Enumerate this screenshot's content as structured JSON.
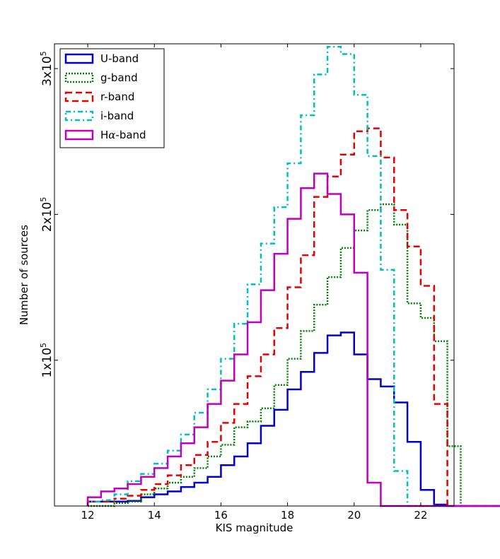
{
  "chart_data": {
    "type": "line",
    "title": "",
    "xlabel": "KIS magnitude",
    "ylabel": "Number of sources",
    "xlim": [
      11,
      23
    ],
    "ylim": [
      0,
      317000
    ],
    "bin_width": 0.4,
    "bin_edges_start": 12.0,
    "xticks": [
      12,
      14,
      16,
      18,
      20,
      22
    ],
    "xtick_labels": [
      "12",
      "14",
      "16",
      "18",
      "20",
      "22"
    ],
    "yticks": [
      {
        "value": 100000,
        "base": "1x10",
        "exp": "5"
      },
      {
        "value": 200000,
        "base": "2x10",
        "exp": "5"
      },
      {
        "value": 300000,
        "base": "3x10",
        "exp": "5"
      }
    ],
    "legend_position": "upper-left",
    "series": [
      {
        "name": "U-band",
        "color": "#0000cc",
        "dash": "solid",
        "values": [
          3000,
          3000,
          3000,
          3500,
          6000,
          8000,
          10000,
          13000,
          16000,
          20000,
          28000,
          34000,
          43000,
          55000,
          66000,
          80000,
          92000,
          105000,
          117000,
          119000,
          104000,
          87000,
          82000,
          71000,
          44000,
          11000,
          1000,
          0,
          0,
          0,
          0
        ]
      },
      {
        "name": "g-band",
        "color": "#007f00",
        "dash": "dotted",
        "values": [
          0,
          0,
          2000,
          3000,
          8000,
          12000,
          16000,
          20000,
          26000,
          34000,
          42000,
          54000,
          58000,
          67000,
          83000,
          101000,
          120000,
          138000,
          157000,
          177000,
          189000,
          203000,
          207000,
          193000,
          139000,
          129000,
          113000,
          41000,
          0,
          0,
          0
        ]
      },
      {
        "name": "r-band",
        "color": "#e60000",
        "dash": "dashed",
        "values": [
          3000,
          3000,
          5000,
          7000,
          11000,
          15000,
          21000,
          28000,
          35000,
          44000,
          57000,
          70000,
          89000,
          104000,
          122000,
          150000,
          172000,
          212000,
          226000,
          241000,
          257000,
          259000,
          239000,
          203000,
          178000,
          151000,
          70000,
          0,
          0,
          0,
          0
        ]
      },
      {
        "name": "i-band",
        "color": "#00bfbf",
        "dash": "dashdot",
        "values": [
          3000,
          4000,
          8000,
          17000,
          22000,
          29000,
          38000,
          49000,
          64000,
          80000,
          101000,
          125000,
          152000,
          180000,
          205000,
          235000,
          268000,
          296000,
          315000,
          310000,
          282000,
          240000,
          162000,
          24000,
          0,
          0,
          0,
          0,
          0,
          0,
          0
        ]
      },
      {
        "name": "Hα-band",
        "color": "#bf00bf",
        "dash": "solid",
        "values": [
          6000,
          10000,
          12000,
          15000,
          20000,
          26000,
          34000,
          43000,
          54000,
          70000,
          86000,
          104000,
          126000,
          148000,
          173000,
          197000,
          218000,
          228000,
          214000,
          200000,
          160000,
          16000,
          0,
          0,
          0,
          0,
          0,
          0,
          0,
          0,
          0
        ]
      }
    ],
    "legend_labels": {
      "ha_prefix": "H",
      "ha_alpha": "α",
      "ha_suffix": "-band"
    }
  }
}
